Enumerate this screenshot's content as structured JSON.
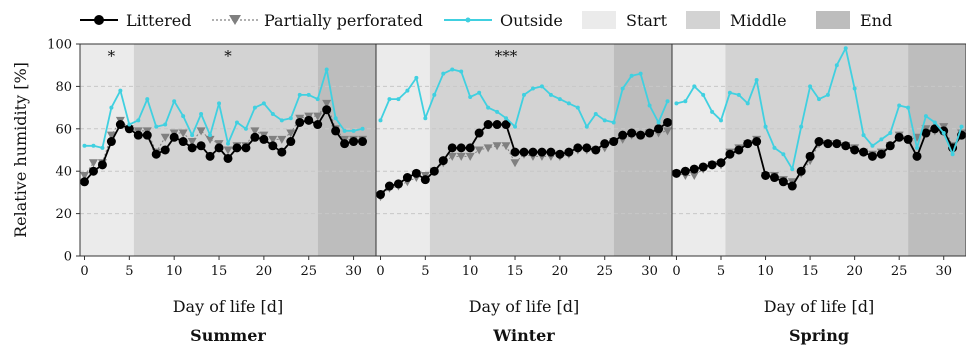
{
  "legend": {
    "littered": "Littered",
    "partially": "Partially perforated",
    "outside": "Outside",
    "start": "Start",
    "middle": "Middle",
    "end": "End"
  },
  "y_axis_label": "Relative humidity [%]",
  "colors": {
    "littered": "#000000",
    "partially": "#808080",
    "outside": "#40d0e0",
    "start": "#ebebeb",
    "middle": "#d3d3d3",
    "end": "#bdbdbd",
    "grid": "#c8c8c8",
    "frame": "#333333"
  },
  "chart_data": [
    {
      "type": "line",
      "title": "Summer",
      "xlabel": "Day of life [d]",
      "ylabel": "Relative humidity [%]",
      "xlim": [
        -0.5,
        32.5
      ],
      "ylim": [
        0,
        100
      ],
      "yticks": [
        0,
        20,
        40,
        60,
        80,
        100
      ],
      "xticks": [
        0,
        5,
        10,
        15,
        20,
        25,
        30
      ],
      "periods": [
        {
          "name": "Start",
          "from": -0.5,
          "to": 5.5
        },
        {
          "name": "Middle",
          "from": 5.5,
          "to": 26
        },
        {
          "name": "End",
          "from": 26,
          "to": 32.5
        }
      ],
      "annotations": [
        {
          "text": "*",
          "x": 3
        },
        {
          "text": "*",
          "x": 16
        }
      ],
      "x": [
        0,
        1,
        2,
        3,
        4,
        5,
        6,
        7,
        8,
        9,
        10,
        11,
        12,
        13,
        14,
        15,
        16,
        17,
        18,
        19,
        20,
        21,
        22,
        23,
        24,
        25,
        26,
        27,
        28,
        29,
        30,
        31,
        32
      ],
      "series": [
        {
          "name": "Outside",
          "values": [
            52,
            52,
            51,
            70,
            78,
            62,
            64,
            74,
            61,
            62,
            73,
            66,
            57,
            67,
            57,
            72,
            53,
            63,
            60,
            70,
            72,
            67,
            64,
            65,
            76,
            76,
            74,
            88,
            65,
            59,
            59,
            60,
            null
          ]
        },
        {
          "name": "Partially perforated",
          "values": [
            38,
            44,
            44,
            57,
            64,
            60,
            59,
            59,
            49,
            56,
            58,
            58,
            54,
            59,
            55,
            53,
            50,
            52,
            52,
            59,
            57,
            55,
            55,
            58,
            65,
            66,
            66,
            72,
            60,
            55,
            55,
            55,
            null
          ]
        },
        {
          "name": "Littered",
          "values": [
            35,
            40,
            43,
            54,
            62,
            60,
            57,
            57,
            48,
            50,
            56,
            54,
            51,
            52,
            47,
            51,
            46,
            51,
            51,
            56,
            55,
            52,
            49,
            54,
            63,
            64,
            62,
            69,
            59,
            53,
            54,
            54,
            null
          ]
        }
      ]
    },
    {
      "type": "line",
      "title": "Winter",
      "xlabel": "Day of life [d]",
      "ylabel": "",
      "xlim": [
        -0.5,
        32.5
      ],
      "ylim": [
        0,
        100
      ],
      "xticks": [
        0,
        5,
        10,
        15,
        20,
        25,
        30
      ],
      "periods": [
        {
          "name": "Start",
          "from": -0.5,
          "to": 5.5
        },
        {
          "name": "Middle",
          "from": 5.5,
          "to": 26
        },
        {
          "name": "End",
          "from": 26,
          "to": 32.5
        }
      ],
      "annotations": [
        {
          "text": "***",
          "x": 14
        }
      ],
      "x": [
        0,
        1,
        2,
        3,
        4,
        5,
        6,
        7,
        8,
        9,
        10,
        11,
        12,
        13,
        14,
        15,
        16,
        17,
        18,
        19,
        20,
        21,
        22,
        23,
        24,
        25,
        26,
        27,
        28,
        29,
        30,
        31,
        32
      ],
      "series": [
        {
          "name": "Outside",
          "values": [
            64,
            74,
            74,
            78,
            84,
            65,
            76,
            86,
            88,
            87,
            75,
            77,
            70,
            68,
            65,
            61,
            76,
            79,
            80,
            76,
            74,
            72,
            70,
            61,
            67,
            64,
            63,
            79,
            85,
            86,
            71,
            63,
            73
          ]
        },
        {
          "name": "Partially perforated",
          "values": [
            28,
            32,
            33,
            35,
            37,
            38,
            40,
            44,
            47,
            47,
            47,
            50,
            51,
            52,
            52,
            44,
            48,
            47,
            47,
            47,
            47,
            48,
            50,
            50,
            50,
            51,
            54,
            55,
            57,
            57,
            58,
            58,
            59
          ]
        },
        {
          "name": "Littered",
          "values": [
            29,
            33,
            34,
            37,
            39,
            36,
            40,
            45,
            51,
            51,
            51,
            58,
            62,
            62,
            62,
            49,
            49,
            49,
            49,
            49,
            48,
            49,
            51,
            51,
            50,
            53,
            54,
            57,
            58,
            57,
            58,
            60,
            63
          ]
        }
      ]
    },
    {
      "type": "line",
      "title": "Spring",
      "xlabel": "Day of life [d]",
      "ylabel": "",
      "xlim": [
        -0.5,
        32.5
      ],
      "ylim": [
        0,
        100
      ],
      "xticks": [
        0,
        5,
        10,
        15,
        20,
        25,
        30
      ],
      "periods": [
        {
          "name": "Start",
          "from": -0.5,
          "to": 5.5
        },
        {
          "name": "Middle",
          "from": 5.5,
          "to": 26
        },
        {
          "name": "End",
          "from": 26,
          "to": 32.5
        }
      ],
      "annotations": [],
      "x": [
        0,
        1,
        2,
        3,
        4,
        5,
        6,
        7,
        8,
        9,
        10,
        11,
        12,
        13,
        14,
        15,
        16,
        17,
        18,
        19,
        20,
        21,
        22,
        23,
        24,
        25,
        26,
        27,
        28,
        29,
        30,
        31,
        32
      ],
      "series": [
        {
          "name": "Outside",
          "values": [
            72,
            73,
            80,
            76,
            68,
            64,
            77,
            76,
            72,
            83,
            61,
            51,
            48,
            41,
            61,
            80,
            74,
            76,
            90,
            98,
            79,
            57,
            52,
            55,
            58,
            71,
            70,
            51,
            66,
            63,
            58,
            48,
            61
          ]
        },
        {
          "name": "Partially perforated",
          "values": [
            39,
            38,
            38,
            41,
            43,
            43,
            49,
            51,
            53,
            55,
            38,
            38,
            36,
            35,
            39,
            45,
            53,
            53,
            53,
            52,
            51,
            49,
            48,
            49,
            52,
            57,
            55,
            56,
            60,
            59,
            61,
            52,
            58
          ]
        },
        {
          "name": "Littered",
          "values": [
            39,
            40,
            41,
            42,
            43,
            44,
            48,
            50,
            53,
            54,
            38,
            37,
            35,
            33,
            40,
            47,
            54,
            53,
            53,
            52,
            50,
            49,
            47,
            48,
            52,
            56,
            55,
            47,
            58,
            60,
            59,
            51,
            57
          ]
        }
      ]
    }
  ]
}
